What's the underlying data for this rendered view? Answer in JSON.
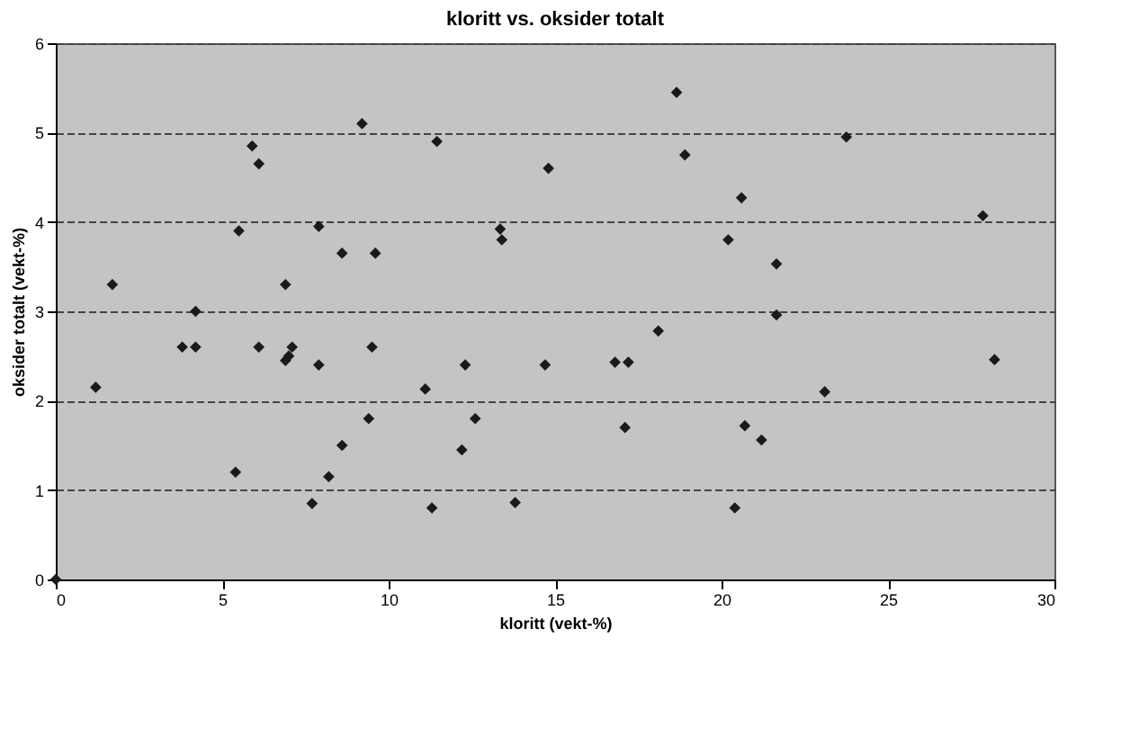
{
  "chart_data": {
    "type": "scatter",
    "title": "kloritt vs. oksider totalt",
    "xlabel": "kloritt (vekt-%)",
    "ylabel": "oksider totalt (vekt-%)",
    "x": [
      0,
      1.2,
      1.7,
      3.8,
      4.2,
      4.2,
      5.4,
      5.5,
      5.9,
      6.1,
      6.1,
      6.9,
      6.9,
      7.0,
      7.1,
      7.9,
      7.9,
      7.7,
      8.2,
      8.6,
      8.6,
      9.2,
      9.6,
      9.5,
      9.4,
      11.45,
      11.1,
      11.3,
      12.3,
      12.6,
      12.2,
      13.35,
      13.4,
      13.8,
      14.8,
      14.7,
      16.8,
      17.2,
      17.1,
      18.1,
      18.65,
      18.9,
      20.2,
      20.6,
      20.4,
      20.7,
      21.2,
      21.65,
      21.65,
      23.1,
      23.75,
      27.85,
      28.2
    ],
    "series": [
      {
        "color": "#1a1a1a",
        "values": [
          0,
          2.15,
          3.3,
          2.6,
          2.6,
          3.0,
          1.2,
          3.9,
          4.85,
          4.65,
          2.6,
          3.3,
          2.45,
          2.5,
          2.6,
          3.95,
          2.4,
          0.85,
          1.15,
          1.5,
          3.65,
          5.1,
          3.65,
          2.6,
          1.8,
          4.9,
          2.13,
          0.8,
          2.4,
          1.8,
          1.45,
          3.92,
          3.8,
          0.86,
          4.6,
          2.4,
          2.43,
          2.43,
          1.7,
          2.78,
          5.45,
          4.75,
          3.8,
          4.27,
          0.8,
          1.72,
          1.56,
          3.53,
          2.96,
          2.1,
          4.95,
          4.07,
          2.46
        ]
      }
    ],
    "xlim": [
      0,
      30
    ],
    "xticks": [
      0,
      5,
      10,
      15,
      20,
      25,
      30
    ],
    "ylim": [
      0,
      6
    ],
    "yticks": [
      0,
      1,
      2,
      3,
      4,
      5,
      6
    ],
    "grid": "y",
    "marker": "diamond",
    "legend": false
  }
}
